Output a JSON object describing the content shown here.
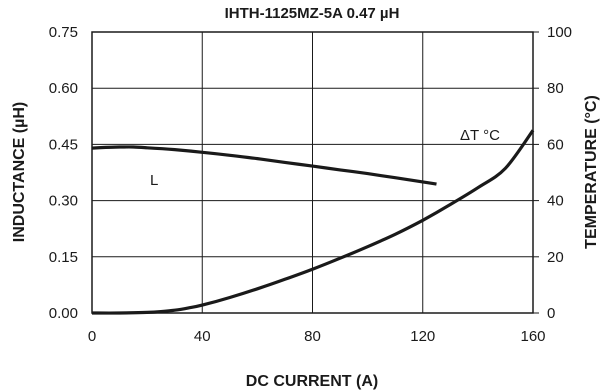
{
  "chart_data": {
    "type": "line",
    "title": "IHTH-1125MZ-5A 0.47 µH",
    "xlabel": "DC CURRENT (A)",
    "ylabel": "INDUCTANCE (µH)",
    "y2label": "TEMPERATURE (°C)",
    "xlim": [
      0,
      160
    ],
    "ylim": [
      0,
      0.75
    ],
    "y2lim": [
      0,
      100
    ],
    "x_ticks": [
      "0",
      "40",
      "80",
      "120",
      "160"
    ],
    "y_ticks": [
      "0.00",
      "0.15",
      "0.30",
      "0.45",
      "0.60",
      "0.75"
    ],
    "y2_ticks": [
      "0",
      "20",
      "40",
      "60",
      "80",
      "100"
    ],
    "grid": true,
    "series": [
      {
        "name": "L",
        "axis": "left",
        "x": [
          0,
          5,
          10,
          15,
          20,
          30,
          40,
          50,
          60,
          70,
          80,
          90,
          100,
          110,
          120,
          125
        ],
        "y": [
          0.44,
          0.442,
          0.443,
          0.443,
          0.441,
          0.436,
          0.429,
          0.421,
          0.412,
          0.402,
          0.392,
          0.382,
          0.372,
          0.361,
          0.35,
          0.344
        ]
      },
      {
        "name": "ΔT °C",
        "axis": "right",
        "x": [
          0,
          10,
          20,
          25,
          30,
          35,
          40,
          50,
          60,
          70,
          80,
          90,
          100,
          110,
          120,
          130,
          140,
          150,
          160
        ],
        "y": [
          0,
          0,
          0.2,
          0.5,
          1.0,
          1.8,
          2.8,
          5.5,
          8.6,
          12.0,
          15.6,
          19.5,
          23.6,
          28.0,
          33.0,
          38.6,
          44.6,
          51.5,
          65.0
        ]
      }
    ],
    "colors": {
      "line": "#1a1a1a",
      "grid": "#1a1a1a"
    }
  }
}
